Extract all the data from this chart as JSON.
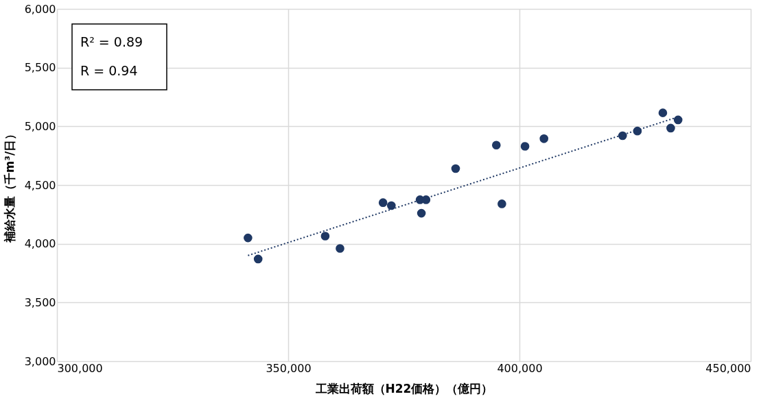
{
  "chart_data": {
    "type": "scatter",
    "xlabel": "工業出荷額（H22価格）（億円）",
    "ylabel": "補給水量（千m³/日）",
    "annotations": [
      "R² = 0.89",
      "R = 0.94"
    ],
    "xlim": [
      300000,
      450000
    ],
    "xticks": [
      {
        "value": 300000,
        "label": "300,000"
      },
      {
        "value": 350000,
        "label": "350,000"
      },
      {
        "value": 400000,
        "label": "400,000"
      },
      {
        "value": 450000,
        "label": "450,000"
      }
    ],
    "ylim": [
      3000,
      6000
    ],
    "yticks": [
      {
        "value": 3000,
        "label": "3,000"
      },
      {
        "value": 3500,
        "label": "3,500"
      },
      {
        "value": 4000,
        "label": "4,000"
      },
      {
        "value": 4500,
        "label": "4,500"
      },
      {
        "value": 5000,
        "label": "5,000"
      },
      {
        "value": 5500,
        "label": "5,500"
      },
      {
        "value": 6000,
        "label": "6,000"
      }
    ],
    "grid": true,
    "marker": "circle",
    "series": [
      {
        "color": "#1f3864",
        "x": [
          341300,
          343500,
          358000,
          361200,
          370500,
          372300,
          378500,
          379800,
          378800,
          386200,
          395000,
          396200,
          401200,
          405300,
          422300,
          425500,
          431000,
          432700,
          434300
        ],
        "values": [
          4050,
          3870,
          4065,
          3960,
          4350,
          4325,
          4375,
          4375,
          4260,
          4640,
          4840,
          4340,
          4830,
          4895,
          4920,
          4960,
          5115,
          4985,
          5055
        ]
      },
      {
        "type": "line",
        "color": "#1f3864",
        "line_style": "dotted",
        "marker": "none",
        "x": [
          341300,
          434300
        ],
        "values": [
          3900,
          5080
        ]
      }
    ]
  }
}
